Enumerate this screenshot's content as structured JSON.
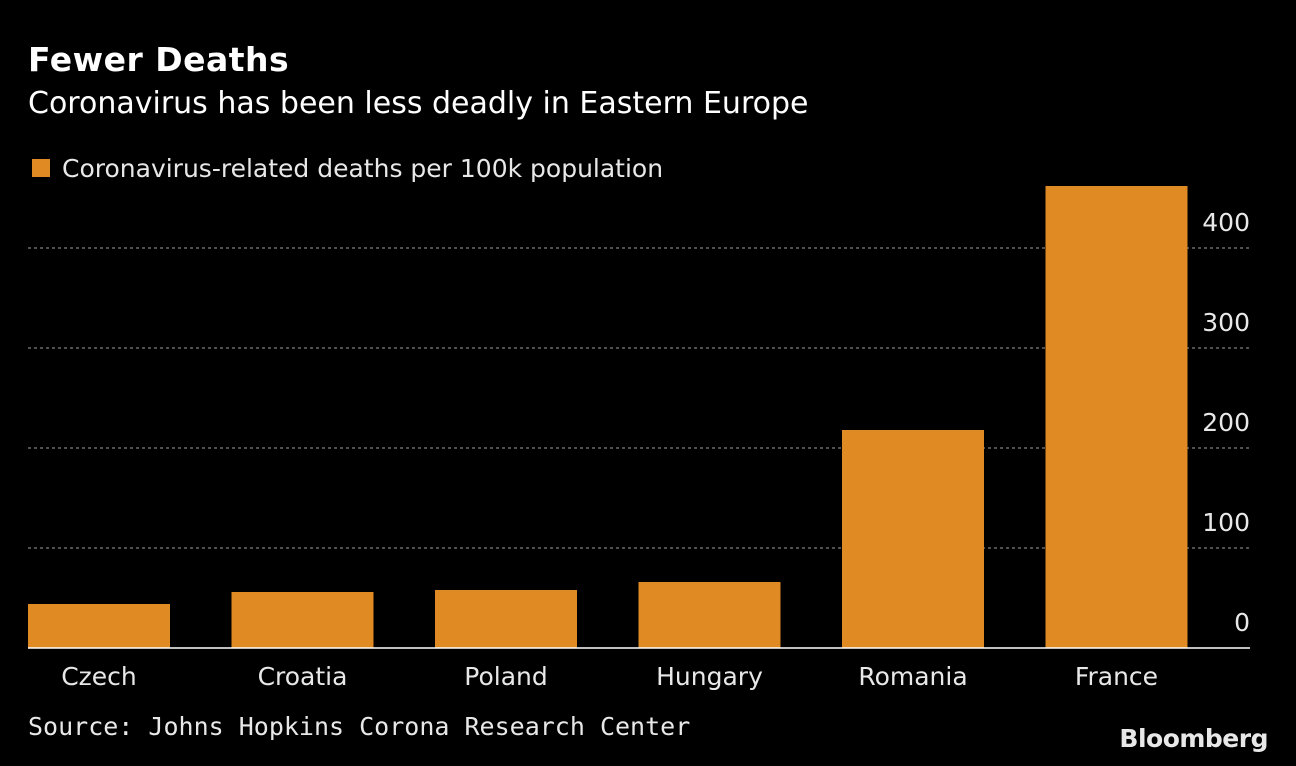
{
  "header": {
    "title": "Fewer Deaths",
    "subtitle": "Coronavirus has been less deadly in Eastern Europe"
  },
  "footer": {
    "source": "Source: Johns Hopkins Corona Research Center",
    "brand": "Bloomberg"
  },
  "colors": {
    "background": "#000000",
    "bar": "#E08A24",
    "text": "#FFFFFF",
    "gridline": "#7F7F7F"
  },
  "chart_data": {
    "type": "bar",
    "title": "Fewer Deaths",
    "subtitle": "Coronavirus has been less deadly in Eastern Europe",
    "categories": [
      "Czech",
      "Croatia",
      "Poland",
      "Hungary",
      "Romania",
      "France"
    ],
    "series": [
      {
        "name": "Coronavirus-related deaths per 100k population",
        "values": [
          44,
          56,
          58,
          66,
          218,
          462
        ]
      }
    ],
    "xlabel": "",
    "ylabel": "",
    "ylim": [
      0,
      462
    ],
    "yticks": [
      0,
      100,
      200,
      300,
      400
    ],
    "ytick_labels": [
      "0",
      "100",
      "200",
      "300",
      "400"
    ],
    "y_axis_position": "right",
    "grid": true,
    "legend_position": "top-left"
  }
}
